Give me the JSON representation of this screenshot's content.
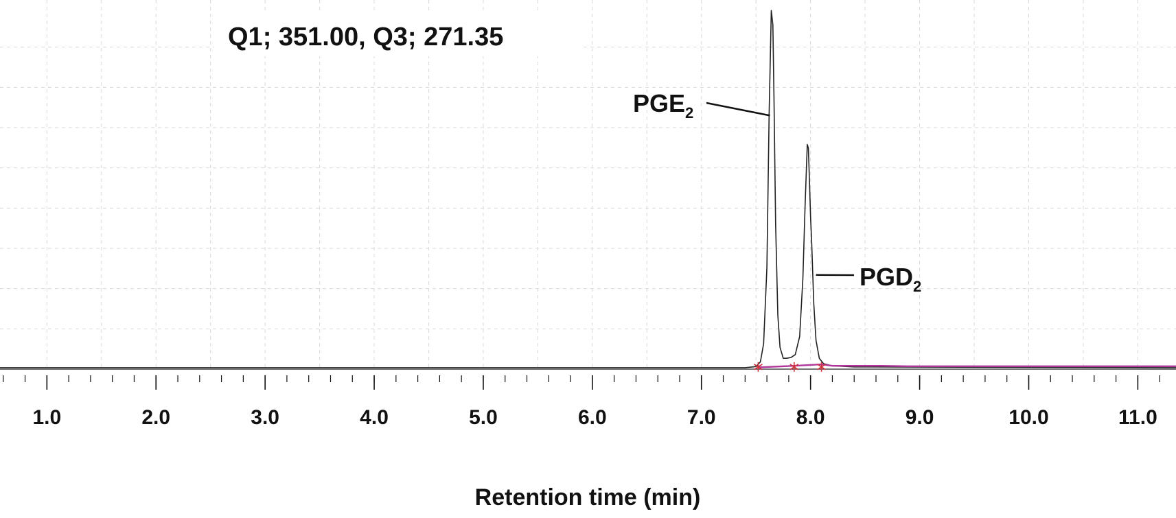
{
  "chart_data": {
    "type": "line",
    "title": "Q1; 351.00, Q3; 271.35",
    "xlabel": "Retention time (min)",
    "ylabel": "",
    "xlim": [
      0.57,
      11.35
    ],
    "ylim": [
      0,
      100
    ],
    "x_ticks": [
      "1.0",
      "2.0",
      "3.0",
      "4.0",
      "5.0",
      "6.0",
      "7.0",
      "8.0",
      "9.0",
      "10.0",
      "11.0"
    ],
    "grid": true,
    "series": [
      {
        "color": "#222222",
        "x": [
          0.57,
          7.4,
          7.5,
          7.54,
          7.57,
          7.6,
          7.62,
          7.64,
          7.655,
          7.665,
          7.68,
          7.7,
          7.72,
          7.75,
          7.78,
          7.82,
          7.86,
          7.9,
          7.93,
          7.95,
          7.97,
          7.98,
          7.99,
          8.0,
          8.01,
          8.03,
          8.05,
          8.08,
          8.12,
          8.2,
          8.4,
          11.35
        ],
        "y": [
          0.4,
          0.4,
          0.7,
          2,
          7,
          28,
          70,
          99,
          95,
          75,
          40,
          15,
          6,
          3,
          3,
          3.2,
          4,
          9,
          25,
          45,
          62,
          61,
          52,
          42,
          35,
          18,
          8,
          3,
          1.5,
          0.9,
          0.6,
          0.4
        ]
      },
      {
        "color": "#b0369a",
        "x": [
          7.52,
          7.85,
          8.1,
          8.2,
          8.65,
          8.88,
          8.95,
          10.0,
          11.35
        ],
        "y": [
          0.5,
          0.9,
          1.3,
          0.9,
          0.9,
          0.8,
          0.8,
          0.8,
          0.8
        ]
      }
    ],
    "peaks": [
      {
        "label": "PGE",
        "sub": "2",
        "x": 7.64,
        "y": 70
      },
      {
        "label": "PGD",
        "sub": "2",
        "x": 8.05,
        "y": 26
      }
    ],
    "integration_marks_x": [
      7.52,
      7.85,
      8.1
    ]
  }
}
